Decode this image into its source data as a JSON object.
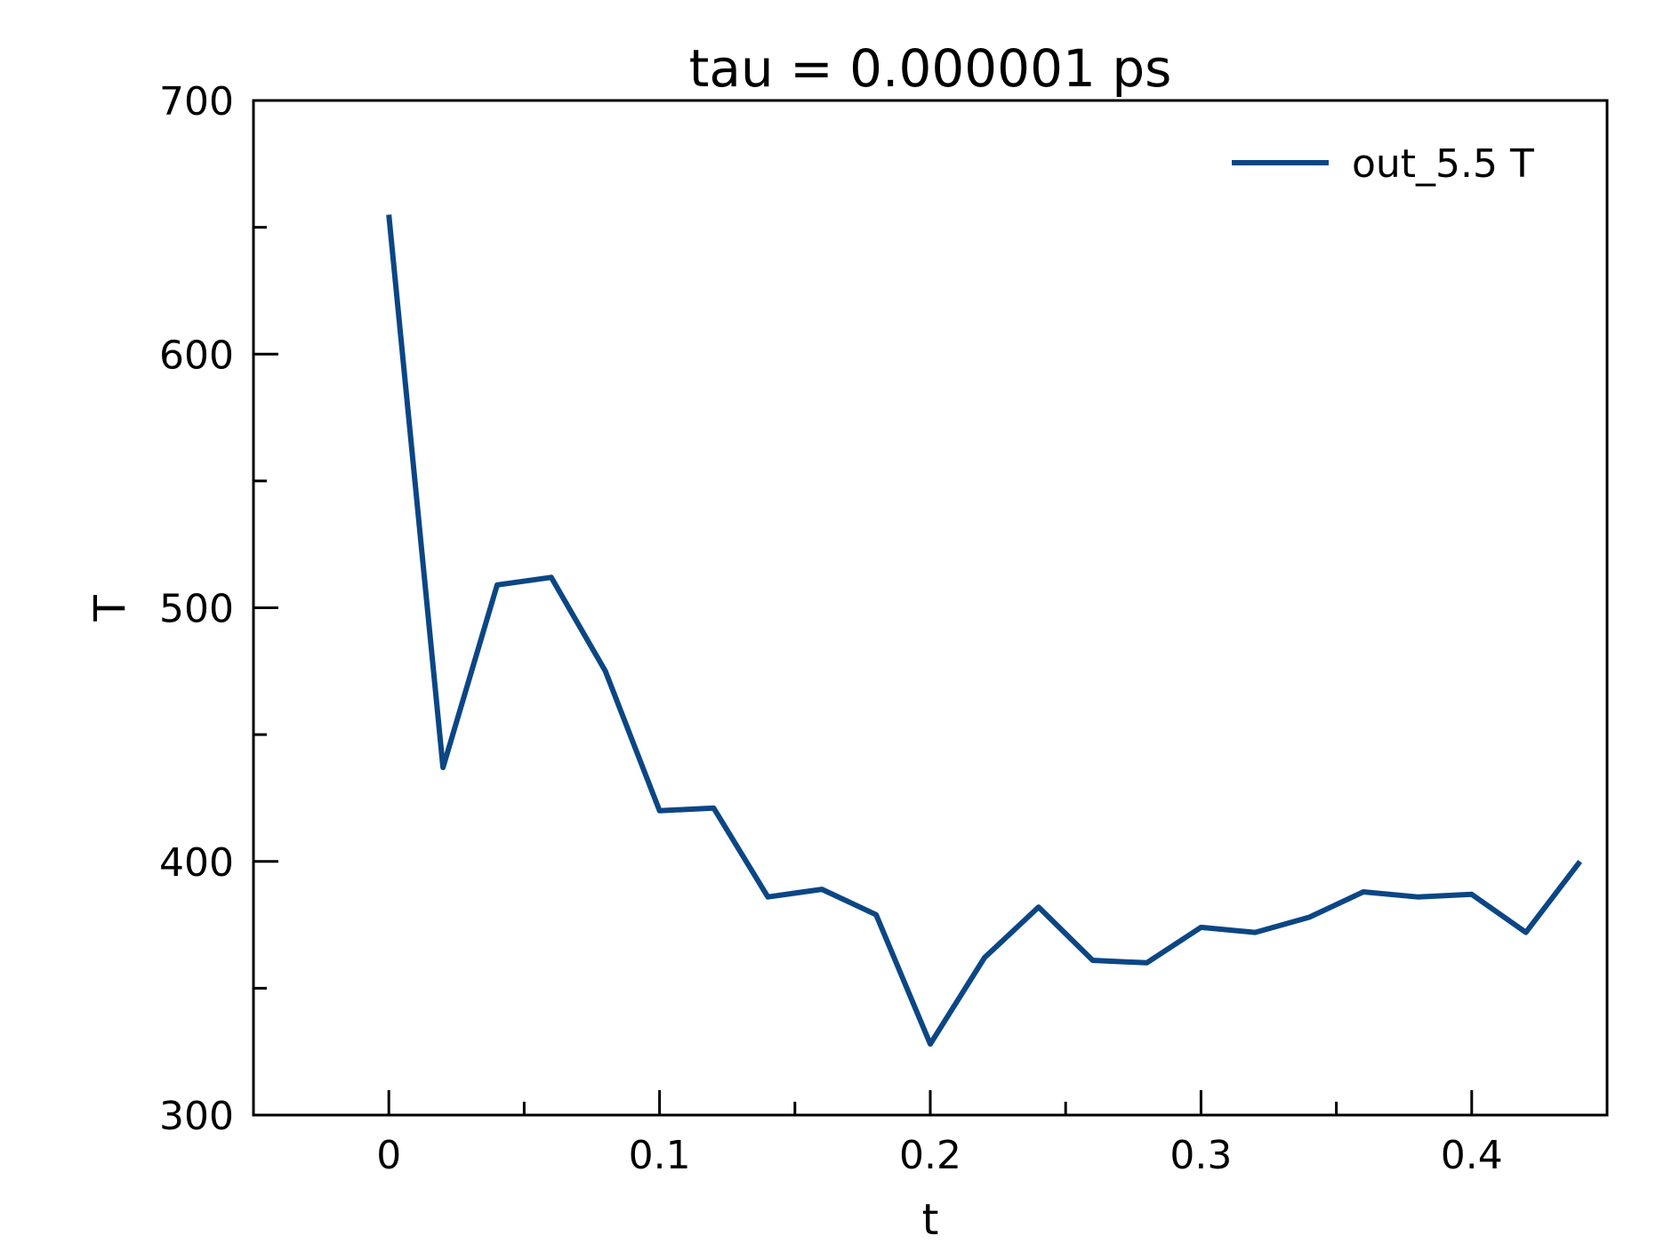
{
  "chart_data": {
    "type": "line",
    "title": "tau = 0.000001 ps",
    "xlabel": "t",
    "ylabel": "T",
    "xlim": [
      -0.05,
      0.45
    ],
    "ylim": [
      300,
      700
    ],
    "xticks": [
      0,
      0.1,
      0.2,
      0.3,
      0.4
    ],
    "xtick_labels": [
      "0",
      "0.1",
      "0.2",
      "0.3",
      "0.4"
    ],
    "xminor_ticks": [
      0.05,
      0.15,
      0.25,
      0.35
    ],
    "yticks": [
      300,
      400,
      500,
      600,
      700
    ],
    "ytick_labels": [
      "300",
      "400",
      "500",
      "600",
      "700"
    ],
    "yminor_ticks": [
      350,
      450,
      550,
      650
    ],
    "grid": false,
    "legend": "top-right",
    "series": [
      {
        "name": "out_5.5 T",
        "color": "#0b4685",
        "x": [
          0,
          0.02,
          0.04,
          0.06,
          0.08,
          0.1,
          0.12,
          0.14,
          0.16,
          0.18,
          0.2,
          0.22,
          0.24,
          0.26,
          0.28,
          0.3,
          0.32,
          0.34,
          0.36,
          0.38,
          0.4,
          0.42,
          0.44
        ],
        "y": [
          655,
          437,
          509,
          512,
          475,
          420,
          421,
          386,
          389,
          379,
          328,
          362,
          382,
          361,
          360,
          374,
          372,
          378,
          388,
          386,
          387,
          372,
          400
        ]
      }
    ]
  }
}
